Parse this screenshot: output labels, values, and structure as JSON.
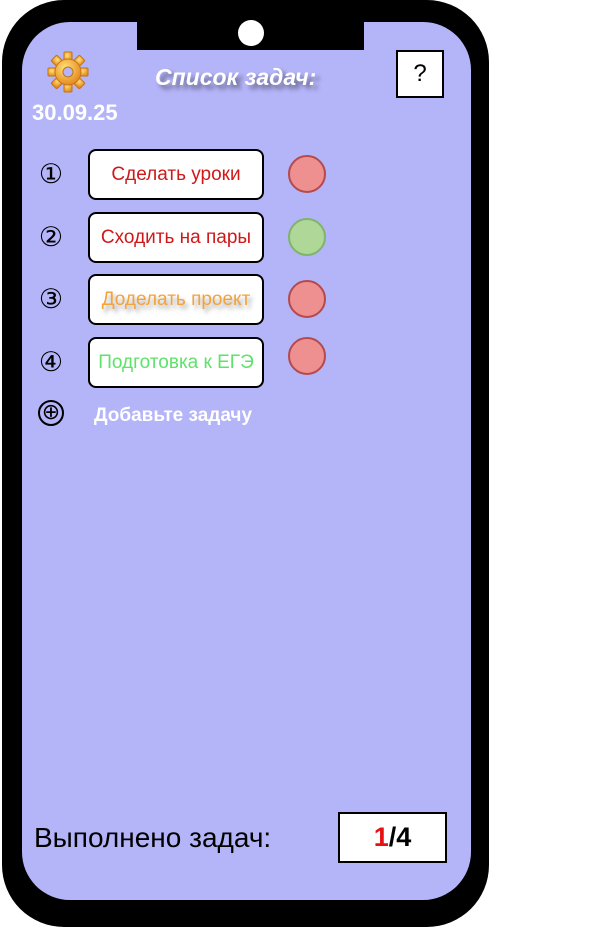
{
  "header": {
    "title": "Список задач:",
    "date": "30.09.25",
    "help_label": "?"
  },
  "tasks": [
    {
      "number": "①",
      "label": "Сделать уроки",
      "color": "#d01818",
      "status": "red"
    },
    {
      "number": "②",
      "label": "Сходить на пары",
      "color": "#d01818",
      "status": "green"
    },
    {
      "number": "③",
      "label": "Доделать проект",
      "color": "#f4a23a",
      "status": "red"
    },
    {
      "number": "④",
      "label": "Подготовка к ЕГЭ",
      "color": "#5ee26a",
      "status": "red"
    }
  ],
  "add_task": {
    "icon": "⊕",
    "label": "Добавьте задачу"
  },
  "footer": {
    "done_label": "Выполнено задач:",
    "done_count": "1",
    "total_count": "/4",
    "done_color": "#e81010"
  }
}
